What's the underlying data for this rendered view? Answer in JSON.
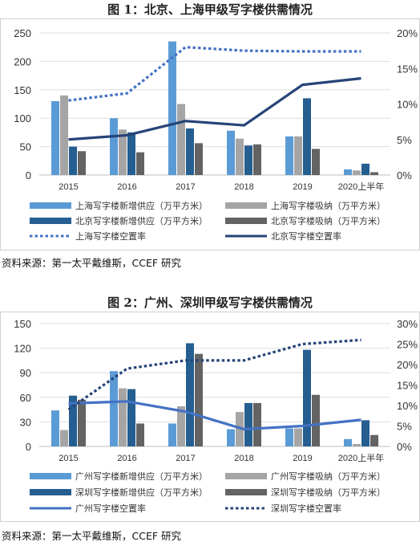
{
  "chart_data": [
    {
      "type": "bar",
      "title": "图 1：北京、上海甲级写字楼供需情况",
      "categories": [
        "2015",
        "2016",
        "2017",
        "2018",
        "2019",
        "2020上半年"
      ],
      "y_left": {
        "ylim": [
          0,
          250
        ],
        "ticks": [
          0,
          50,
          100,
          150,
          200,
          250
        ]
      },
      "y_right": {
        "ylim": [
          0,
          20
        ],
        "ticks": [
          "0%",
          "5%",
          "10%",
          "15%",
          "20%"
        ]
      },
      "bar_series": [
        {
          "name": "上海写字楼新增供应（万平方米）",
          "color": "#5b9bd5",
          "values": [
            130,
            100,
            235,
            78,
            68,
            10
          ]
        },
        {
          "name": "上海写字楼吸纳（万平方米）",
          "color": "#a5a5a5",
          "values": [
            140,
            80,
            125,
            64,
            68,
            8
          ]
        },
        {
          "name": "北京写字楼新增供应（万平方米）",
          "color": "#255e91",
          "values": [
            50,
            75,
            82,
            52,
            135,
            20
          ]
        },
        {
          "name": "北京写字楼吸纳（万平方米）",
          "color": "#636363",
          "values": [
            42,
            40,
            56,
            54,
            46,
            5
          ]
        }
      ],
      "line_series": [
        {
          "name": "上海写字楼空置率",
          "color": "#4472c4",
          "dashed": true,
          "values": [
            10.5,
            11.5,
            18.0,
            17.5,
            17.4,
            17.4
          ]
        },
        {
          "name": "北京写字楼空置率",
          "color": "#264478",
          "dashed": false,
          "values": [
            5.0,
            5.6,
            7.6,
            7.0,
            12.7,
            13.6
          ]
        }
      ],
      "legend_position": "bottom",
      "source": "资料来源：第一太平戴维斯，CCEF 研究"
    },
    {
      "type": "bar",
      "title": "图 2：广州、深圳甲级写字楼供需情况",
      "categories": [
        "2015",
        "2016",
        "2017",
        "2018",
        "2019",
        "2020上半年"
      ],
      "y_left": {
        "ylim": [
          0,
          150
        ],
        "ticks": [
          0,
          30,
          60,
          90,
          120,
          150
        ]
      },
      "y_right": {
        "ylim": [
          0,
          30
        ],
        "ticks": [
          "0%",
          "5%",
          "10%",
          "15%",
          "20%",
          "25%",
          "30%"
        ]
      },
      "bar_series": [
        {
          "name": "广州写字楼新增供应（万平方米）",
          "color": "#5b9bd5",
          "values": [
            44,
            92,
            28,
            21,
            22,
            9
          ]
        },
        {
          "name": "广州写字楼吸纳（万平方米）",
          "color": "#a5a5a5",
          "values": [
            20,
            71,
            49,
            42,
            22,
            3
          ]
        },
        {
          "name": "深圳写字楼新增供应（万平方米）",
          "color": "#255e91",
          "values": [
            62,
            70,
            126,
            53,
            118,
            32
          ]
        },
        {
          "name": "深圳写字楼吸纳（万平方米）",
          "color": "#636363",
          "values": [
            57,
            28,
            113,
            53,
            63,
            14
          ]
        }
      ],
      "line_series": [
        {
          "name": "广州写字楼空置率",
          "color": "#4472c4",
          "dashed": false,
          "values": [
            10.5,
            11.0,
            8.5,
            4.2,
            5.0,
            6.5
          ]
        },
        {
          "name": "深圳写字楼空置率",
          "color": "#264478",
          "dashed": true,
          "values": [
            9.0,
            19.0,
            21.0,
            21.0,
            25.0,
            26.0
          ]
        }
      ],
      "legend_position": "bottom",
      "source": "资料来源：第一太平戴维斯，CCEF 研究"
    }
  ]
}
